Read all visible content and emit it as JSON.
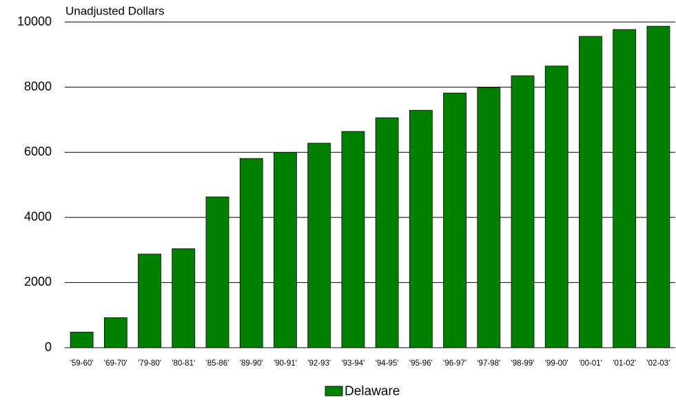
{
  "chart_data": {
    "type": "bar",
    "y_axis_label": "Unadjusted Dollars",
    "categories": [
      "'59-60'",
      "'69-70'",
      "'79-80'",
      "'80-81'",
      "'85-86'",
      "'89-90'",
      "'90-91'",
      "'92-93'",
      "'93-94'",
      "'94-95'",
      "'95-96'",
      "'96-97'",
      "'97-98'",
      "'98-99'",
      "'99-00'",
      "'00-01'",
      "'01-02'",
      "'02-03'"
    ],
    "series": [
      {
        "name": "Delaware",
        "color": "#008000",
        "values": [
          480,
          920,
          2875,
          3040,
          4630,
          5810,
          5990,
          6280,
          6640,
          7060,
          7290,
          7820,
          7990,
          8350,
          8650,
          9560,
          9770,
          9870
        ]
      }
    ],
    "ylim": [
      0,
      10000
    ],
    "yticks": [
      0,
      2000,
      4000,
      6000,
      8000,
      10000
    ],
    "grid": true,
    "legend": "bottom"
  }
}
